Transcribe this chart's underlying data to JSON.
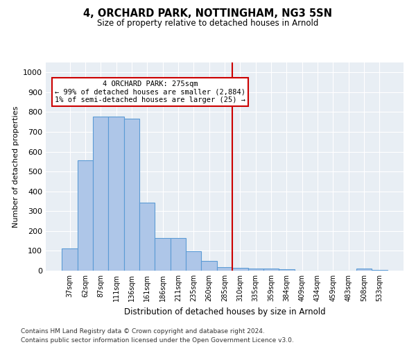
{
  "title1": "4, ORCHARD PARK, NOTTINGHAM, NG3 5SN",
  "title2": "Size of property relative to detached houses in Arnold",
  "xlabel": "Distribution of detached houses by size in Arnold",
  "ylabel": "Number of detached properties",
  "footer1": "Contains HM Land Registry data © Crown copyright and database right 2024.",
  "footer2": "Contains public sector information licensed under the Open Government Licence v3.0.",
  "annotation_title": "4 ORCHARD PARK: 275sqm",
  "annotation_line1": "← 99% of detached houses are smaller (2,884)",
  "annotation_line2": "1% of semi-detached houses are larger (25) →",
  "bar_color": "#aec6e8",
  "bar_edge_color": "#5b9bd5",
  "vline_color": "#cc0000",
  "annotation_box_edge": "#cc0000",
  "background_color": "#e8eef4",
  "categories": [
    "37sqm",
    "62sqm",
    "87sqm",
    "111sqm",
    "136sqm",
    "161sqm",
    "186sqm",
    "211sqm",
    "235sqm",
    "260sqm",
    "285sqm",
    "310sqm",
    "335sqm",
    "359sqm",
    "384sqm",
    "409sqm",
    "434sqm",
    "459sqm",
    "483sqm",
    "508sqm",
    "533sqm"
  ],
  "values": [
    112,
    557,
    778,
    778,
    768,
    343,
    163,
    163,
    97,
    50,
    18,
    14,
    10,
    10,
    6,
    0,
    0,
    0,
    0,
    10,
    5
  ],
  "vline_x_index": 10,
  "ylim": [
    0,
    1050
  ],
  "yticks": [
    0,
    100,
    200,
    300,
    400,
    500,
    600,
    700,
    800,
    900,
    1000
  ]
}
